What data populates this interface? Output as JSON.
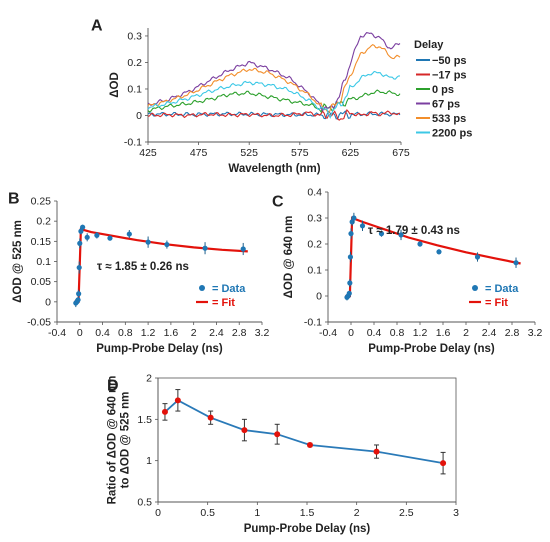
{
  "chart_data": [
    {
      "id": "A",
      "type": "line",
      "panel_label": "A",
      "xlabel": "Wavelength (nm)",
      "ylabel": "ΔOD",
      "xlim": [
        425,
        675
      ],
      "ylim": [
        -0.1,
        0.33
      ],
      "xticks": [
        425,
        475,
        525,
        575,
        625,
        675
      ],
      "yticks": [
        -0.1,
        0,
        0.1,
        0.2,
        0.3
      ],
      "ytick_labels": [
        "-0.1",
        "0",
        "0.1",
        "0.2",
        "0.3"
      ],
      "legend_title": "Delay",
      "legend_position": "right",
      "series": [
        {
          "name": "−50 ps",
          "color": "#1f77b4",
          "x": [
            425,
            445,
            465,
            485,
            505,
            525,
            545,
            565,
            585,
            595,
            605,
            615,
            625,
            635,
            645,
            655,
            665,
            675
          ],
          "values": [
            0.005,
            0.005,
            0.004,
            0.005,
            0.006,
            0.005,
            0.004,
            0.003,
            0.003,
            0.002,
            0.002,
            0.003,
            0.004,
            0.005,
            0.006,
            0.006,
            0.005,
            0.004
          ]
        },
        {
          "name": "−17 ps",
          "color": "#d62728",
          "x": [
            425,
            445,
            465,
            485,
            505,
            525,
            545,
            565,
            585,
            595,
            605,
            615,
            625,
            635,
            645,
            655,
            665,
            675
          ],
          "values": [
            0.0,
            0.003,
            0.0,
            0.005,
            0.002,
            0.004,
            0.0,
            0.002,
            0.01,
            0.0,
            0.005,
            -0.01,
            0.01,
            0.0,
            0.01,
            0.005,
            0.012,
            0.0
          ]
        },
        {
          "name": "0 ps",
          "color": "#2ca02c",
          "x": [
            425,
            445,
            465,
            485,
            505,
            525,
            545,
            565,
            585,
            595,
            605,
            615,
            625,
            635,
            645,
            655,
            665,
            675
          ],
          "values": [
            0.02,
            0.035,
            0.045,
            0.06,
            0.08,
            0.085,
            0.07,
            0.055,
            0.04,
            0.025,
            0.03,
            0.045,
            0.06,
            0.07,
            0.085,
            0.09,
            0.085,
            0.08
          ]
        },
        {
          "name": "67 ps",
          "color": "#7b3fa0",
          "x": [
            425,
            445,
            465,
            485,
            505,
            525,
            545,
            565,
            585,
            595,
            605,
            615,
            625,
            635,
            645,
            655,
            665,
            675
          ],
          "values": [
            0.04,
            0.06,
            0.09,
            0.13,
            0.17,
            0.2,
            0.175,
            0.14,
            0.08,
            0.04,
            0.02,
            0.08,
            0.2,
            0.3,
            0.31,
            0.29,
            0.25,
            0.28
          ]
        },
        {
          "name": "533 ps",
          "color": "#f28e2b",
          "x": [
            425,
            445,
            465,
            485,
            505,
            525,
            545,
            565,
            585,
            595,
            605,
            615,
            625,
            635,
            645,
            655,
            665,
            675
          ],
          "values": [
            0.035,
            0.055,
            0.08,
            0.115,
            0.15,
            0.175,
            0.16,
            0.125,
            0.075,
            0.035,
            0.02,
            0.06,
            0.15,
            0.23,
            0.26,
            0.26,
            0.22,
            0.22
          ]
        },
        {
          "name": "2200 ps",
          "color": "#3cc8e6",
          "x": [
            425,
            445,
            465,
            485,
            505,
            525,
            545,
            565,
            585,
            595,
            605,
            615,
            625,
            635,
            645,
            655,
            665,
            675
          ],
          "values": [
            0.03,
            0.045,
            0.065,
            0.09,
            0.11,
            0.125,
            0.115,
            0.095,
            0.055,
            0.025,
            0.01,
            0.04,
            0.1,
            0.14,
            0.16,
            0.16,
            0.14,
            0.15
          ]
        }
      ]
    },
    {
      "id": "B",
      "type": "scatter",
      "panel_label": "B",
      "xlabel": "Pump-Probe Delay (ns)",
      "ylabel": "ΔOD @ 525 nm",
      "xlim": [
        -0.4,
        3.2
      ],
      "ylim": [
        -0.05,
        0.25
      ],
      "xticks": [
        -0.4,
        0,
        0.4,
        0.8,
        1.2,
        1.6,
        2,
        2.4,
        2.8,
        3.2
      ],
      "xtick_labels": [
        "-0.4",
        "0",
        "0.4",
        "0.8",
        "1.2",
        "1.6",
        "2",
        "2.4",
        "2.8",
        "3.2"
      ],
      "yticks": [
        -0.05,
        0,
        0.05,
        0.1,
        0.15,
        0.2,
        0.25
      ],
      "ytick_labels": [
        "-0.05",
        "0",
        "0.05",
        "0.1",
        "0.15",
        "0.2",
        "0.25"
      ],
      "annotation": "τ ≈ 1.85 ± 0.26 ns",
      "legend": [
        {
          "name": "= Data",
          "color": "#1f77b4"
        },
        {
          "name": "= Fit",
          "color": "#e3120b"
        }
      ],
      "legend_position": "bottom-right",
      "data": {
        "x": [
          -0.07,
          -0.05,
          -0.03,
          -0.02,
          -0.01,
          0.0,
          0.02,
          0.05,
          0.13,
          0.3,
          0.53,
          0.87,
          1.2,
          1.53,
          2.2,
          2.87
        ],
        "y": [
          -0.003,
          0.0,
          0.005,
          0.02,
          0.085,
          0.145,
          0.175,
          0.185,
          0.16,
          0.165,
          0.158,
          0.168,
          0.148,
          0.142,
          0.133,
          0.131
        ],
        "err": [
          0.01,
          0.006,
          0.006,
          0.01,
          0.015,
          0.012,
          0.008,
          0.006,
          0.01,
          0.008,
          0.006,
          0.01,
          0.014,
          0.01,
          0.015,
          0.015
        ]
      },
      "fit": {
        "x": [
          -0.1,
          -0.02,
          -0.02,
          0.02,
          0.2,
          0.6,
          1.0,
          1.5,
          2.0,
          2.5,
          2.95
        ],
        "y": [
          0.0,
          0.0,
          0.005,
          0.18,
          0.173,
          0.163,
          0.153,
          0.143,
          0.135,
          0.129,
          0.125
        ]
      }
    },
    {
      "id": "C",
      "type": "scatter",
      "panel_label": "C",
      "xlabel": "Pump-Probe Delay (ns)",
      "ylabel": "ΔOD @ 640 nm",
      "xlim": [
        -0.4,
        3.2
      ],
      "ylim": [
        -0.1,
        0.4
      ],
      "xticks": [
        -0.4,
        0,
        0.4,
        0.8,
        1.2,
        1.6,
        2,
        2.4,
        2.8,
        3.2
      ],
      "xtick_labels": [
        "-0.4",
        "0",
        "0.4",
        "0.8",
        "1.2",
        "1.6",
        "2",
        "2.4",
        "2.8",
        "3.2"
      ],
      "yticks": [
        -0.1,
        0,
        0.1,
        0.2,
        0.3,
        0.4
      ],
      "ytick_labels": [
        "-0.1",
        "0",
        "0.1",
        "0.2",
        "0.3",
        "0.4"
      ],
      "annotation": "τ ≈ 1.79 ± 0.43 ns",
      "legend": [
        {
          "name": "= Data",
          "color": "#1f77b4"
        },
        {
          "name": "= Fit",
          "color": "#e3120b"
        }
      ],
      "legend_position": "bottom-right",
      "data": {
        "x": [
          -0.07,
          -0.05,
          -0.03,
          -0.02,
          -0.01,
          0.0,
          0.02,
          0.05,
          0.2,
          0.53,
          0.87,
          1.2,
          1.53,
          2.2,
          2.87
        ],
        "y": [
          -0.005,
          0.0,
          0.01,
          0.05,
          0.15,
          0.24,
          0.285,
          0.3,
          0.27,
          0.24,
          0.235,
          0.2,
          0.17,
          0.15,
          0.128
        ],
        "err": [
          0.012,
          0.008,
          0.01,
          0.015,
          0.02,
          0.02,
          0.015,
          0.02,
          0.02,
          0.012,
          0.02,
          0.01,
          0.01,
          0.018,
          0.02
        ]
      },
      "fit": {
        "x": [
          -0.1,
          -0.02,
          -0.02,
          0.02,
          0.2,
          0.6,
          1.0,
          1.5,
          2.0,
          2.5,
          2.95
        ],
        "y": [
          0.0,
          0.0,
          0.005,
          0.3,
          0.285,
          0.255,
          0.225,
          0.195,
          0.168,
          0.145,
          0.125
        ]
      }
    },
    {
      "id": "D",
      "type": "line",
      "panel_label": "D",
      "xlabel": "Pump-Probe Delay (ns)",
      "ylabel": "Ratio of ΔOD @ 640 nm to ΔOD @ 525 nm",
      "ylabel_lines": [
        "Ratio of ΔOD @ 640 nm",
        "to ΔOD @ 525 nm"
      ],
      "xlim": [
        0,
        3
      ],
      "ylim": [
        0.5,
        2
      ],
      "xticks": [
        0,
        0.5,
        1,
        1.5,
        2,
        2.5,
        3
      ],
      "xtick_labels": [
        "0",
        "0.5",
        "1",
        "1.5",
        "2",
        "2.5",
        "3"
      ],
      "yticks": [
        0.5,
        1,
        1.5,
        2
      ],
      "ytick_labels": [
        "0.5",
        "1",
        "1.5",
        "2"
      ],
      "line_color": "#2a7ab8",
      "marker_color": "#e3120b",
      "x": [
        0.07,
        0.2,
        0.53,
        0.87,
        1.2,
        1.53,
        2.2,
        2.87
      ],
      "values": [
        1.59,
        1.73,
        1.52,
        1.37,
        1.32,
        1.19,
        1.11,
        0.97
      ],
      "err": [
        0.1,
        0.13,
        0.08,
        0.13,
        0.12,
        0.02,
        0.08,
        0.13
      ]
    }
  ]
}
